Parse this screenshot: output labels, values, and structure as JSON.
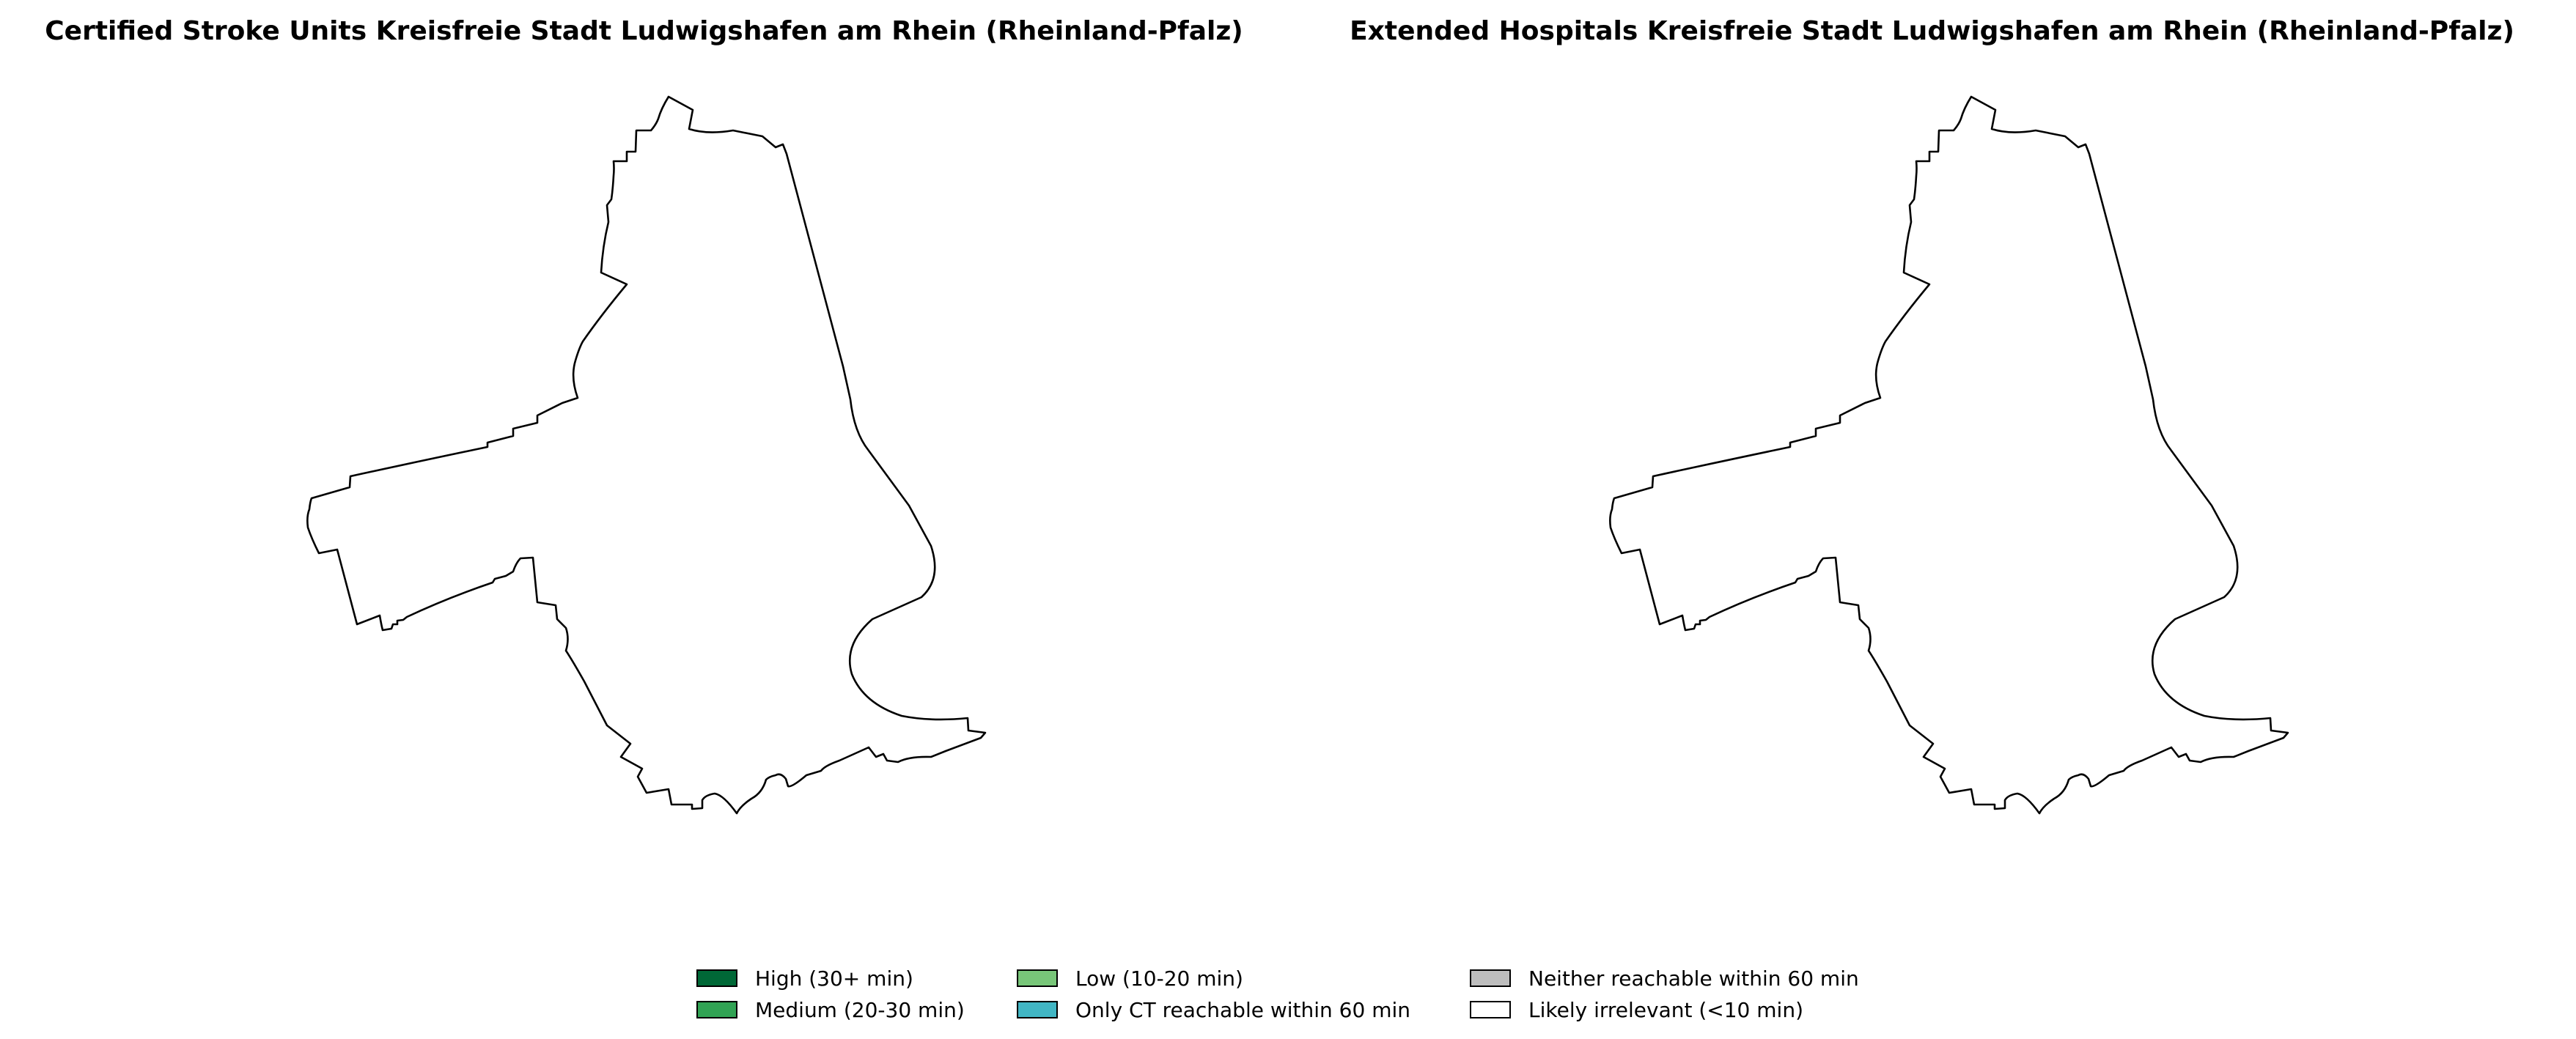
{
  "titles": {
    "left": "Certified Stroke Units Kreisfreie Stadt Ludwigshafen am Rhein (Rheinland-Pfalz)",
    "right": "Extended Hospitals Kreisfreie Stadt Ludwigshafen am Rhein (Rheinland-Pfalz)"
  },
  "maps": [
    {
      "name": "Certified Stroke Units",
      "fill": "#ffffff",
      "category": "Likely irrelevant (<10 min)"
    },
    {
      "name": "Extended Hospitals",
      "fill": "#ffffff",
      "category": "Likely irrelevant (<10 min)"
    }
  ],
  "legend": {
    "items": [
      {
        "label": "High (30+ min)",
        "color": "#006837"
      },
      {
        "label": "Medium (20-30 min)",
        "color": "#31a354"
      },
      {
        "label": "Low (10-20 min)",
        "color": "#78c679"
      },
      {
        "label": "Only CT reachable within 60 min",
        "color": "#41b6c4"
      },
      {
        "label": "Neither reachable within 60 min",
        "color": "#bdbdbd"
      },
      {
        "label": "Likely irrelevant (<10 min)",
        "color": "#ffffff"
      }
    ]
  }
}
